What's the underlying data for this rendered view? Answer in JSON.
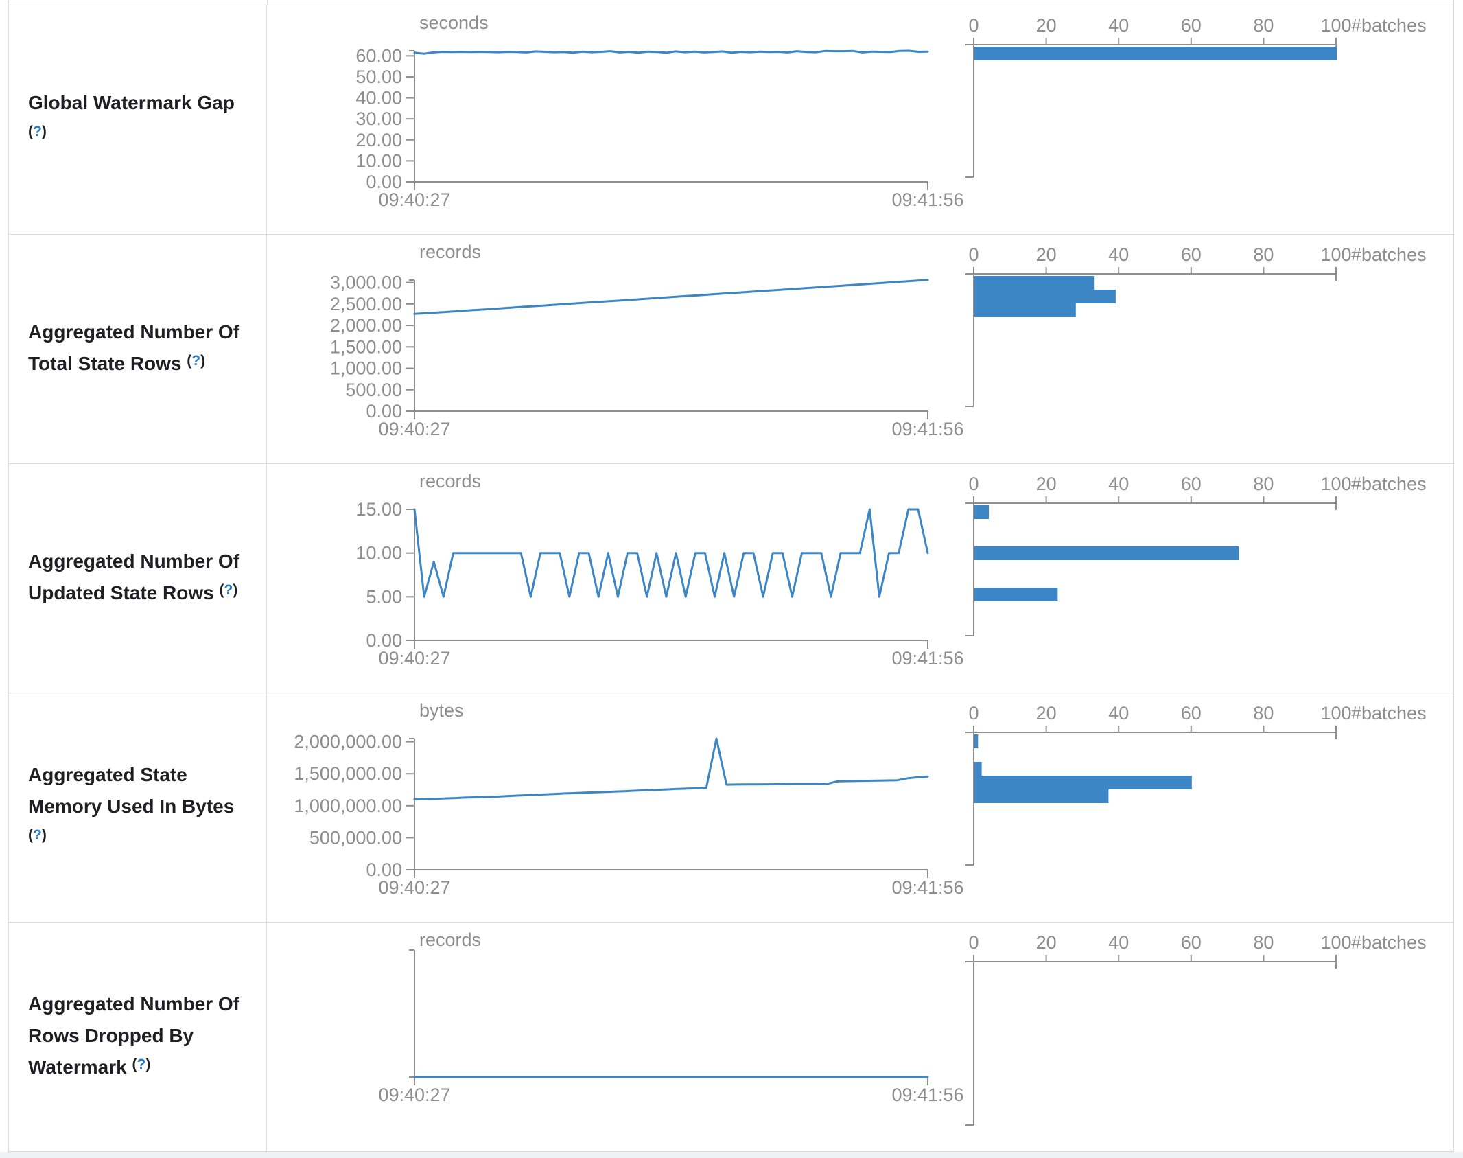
{
  "colors": {
    "accent_blue": "#3d86c6",
    "axis_gray": "#8f8f8f",
    "tick_text_gray": "#8d8d8d",
    "label_text": "#1d1f23",
    "help_blue": "#2779c7",
    "border": "#d9dde1",
    "page_strip": "#eff2f5"
  },
  "histogram_axis_label": "#batches",
  "rows": [
    {
      "id": "global-watermark-gap",
      "label_lines": [
        "Global Watermark Gap",
        "(?)"
      ],
      "timeline": {
        "unit": "seconds",
        "x_start": "09:40:27",
        "x_end": "09:41:56",
        "y_max": 62.4,
        "y_ticks": [
          {
            "v": 0,
            "label": "0.00"
          },
          {
            "v": 10,
            "label": "10.00"
          },
          {
            "v": 20,
            "label": "20.00"
          },
          {
            "v": 30,
            "label": "30.00"
          },
          {
            "v": 40,
            "label": "40.00"
          },
          {
            "v": 50,
            "label": "50.00"
          },
          {
            "v": 60,
            "label": "60.00"
          }
        ],
        "values": [
          61.5,
          61.0,
          61.6,
          61.9,
          61.8,
          61.9,
          61.8,
          61.9,
          61.8,
          61.7,
          61.9,
          61.8,
          61.6,
          62.1,
          61.9,
          61.7,
          61.8,
          61.5,
          62.0,
          61.7,
          61.9,
          62.2,
          61.6,
          61.9,
          61.5,
          62.0,
          61.8,
          61.5,
          62.1,
          61.7,
          62.0,
          61.6,
          61.8,
          62.1,
          61.5,
          61.9,
          61.7,
          62.0,
          61.8,
          61.9,
          61.6,
          62.2,
          61.8,
          61.7,
          62.3,
          62.2,
          62.2,
          62.3,
          61.6,
          62.0,
          61.9,
          61.8,
          62.3,
          62.4,
          61.9,
          62.0
        ]
      },
      "histogram": {
        "x_ticks": [
          {
            "v": 0,
            "label": "0"
          },
          {
            "v": 20,
            "label": "20"
          },
          {
            "v": 40,
            "label": "40"
          },
          {
            "v": 60,
            "label": "60"
          },
          {
            "v": 80,
            "label": "80"
          },
          {
            "v": 100,
            "label": "100"
          }
        ],
        "bins": [
          {
            "slot": 0,
            "count": 100
          }
        ]
      }
    },
    {
      "id": "aggregated-number-of-total-state-rows",
      "label_lines": [
        "Aggregated Number Of",
        "Total State Rows (?)"
      ],
      "timeline": {
        "unit": "records",
        "x_start": "09:40:27",
        "x_end": "09:41:56",
        "y_max": 3058,
        "y_ticks": [
          {
            "v": 0,
            "label": "0.00"
          },
          {
            "v": 500,
            "label": "500.00"
          },
          {
            "v": 1000,
            "label": "1,000.00"
          },
          {
            "v": 1500,
            "label": "1,500.00"
          },
          {
            "v": 2000,
            "label": "2,000.00"
          },
          {
            "v": 2500,
            "label": "2,500.00"
          },
          {
            "v": 3000,
            "label": "3,000.00"
          }
        ],
        "values": [
          2270,
          2283,
          2297,
          2312,
          2328,
          2345,
          2360,
          2374,
          2390,
          2406,
          2422,
          2438,
          2452,
          2466,
          2482,
          2498,
          2514,
          2530,
          2546,
          2560,
          2575,
          2590,
          2606,
          2622,
          2638,
          2654,
          2670,
          2686,
          2700,
          2715,
          2731,
          2747,
          2762,
          2778,
          2794,
          2810,
          2825,
          2841,
          2857,
          2872,
          2888,
          2904,
          2919,
          2935,
          2951,
          2966,
          2982,
          2998,
          3014,
          3030,
          3045,
          3058
        ]
      },
      "histogram": {
        "x_ticks": [
          {
            "v": 0,
            "label": "0"
          },
          {
            "v": 20,
            "label": "20"
          },
          {
            "v": 40,
            "label": "40"
          },
          {
            "v": 60,
            "label": "60"
          },
          {
            "v": 80,
            "label": "80"
          },
          {
            "v": 100,
            "label": "100"
          }
        ],
        "bins": [
          {
            "slot": 0,
            "count": 33
          },
          {
            "slot": 1,
            "count": 39
          },
          {
            "slot": 2,
            "count": 28
          }
        ]
      }
    },
    {
      "id": "aggregated-number-of-updated-state-rows",
      "label_lines": [
        "Aggregated Number Of",
        "Updated State Rows (?)"
      ],
      "timeline": {
        "unit": "records",
        "x_start": "09:40:27",
        "x_end": "09:41:56",
        "y_max": 15,
        "y_ticks": [
          {
            "v": 0,
            "label": "0.00"
          },
          {
            "v": 5,
            "label": "5.00"
          },
          {
            "v": 10,
            "label": "10.00"
          },
          {
            "v": 15,
            "label": "15.00"
          }
        ],
        "values": [
          15,
          5,
          9,
          5,
          10,
          10,
          10,
          10,
          10,
          10,
          10,
          10,
          5,
          10,
          10,
          10,
          5,
          10,
          10,
          5,
          10,
          5,
          10,
          10,
          5,
          10,
          5,
          10,
          5,
          10,
          10,
          5,
          10,
          5,
          10,
          10,
          5,
          10,
          10,
          5,
          10,
          10,
          10,
          5,
          10,
          10,
          10,
          15,
          5,
          10,
          10,
          15,
          15,
          10
        ]
      },
      "histogram": {
        "x_ticks": [
          {
            "v": 0,
            "label": "0"
          },
          {
            "v": 20,
            "label": "20"
          },
          {
            "v": 40,
            "label": "40"
          },
          {
            "v": 60,
            "label": "60"
          },
          {
            "v": 80,
            "label": "80"
          },
          {
            "v": 100,
            "label": "100"
          }
        ],
        "bins": [
          {
            "slot": 0,
            "count": 4
          },
          {
            "slot": 3,
            "count": 73
          },
          {
            "slot": 6,
            "count": 23
          }
        ]
      }
    },
    {
      "id": "aggregated-state-memory-used-in-bytes",
      "label_lines": [
        "Aggregated State",
        "Memory Used In Bytes",
        "(?)"
      ],
      "timeline": {
        "unit": "bytes",
        "x_start": "09:40:27",
        "x_end": "09:41:56",
        "y_max": 2050000,
        "y_ticks": [
          {
            "v": 0,
            "label": "0.00"
          },
          {
            "v": 500000,
            "label": "500,000.00"
          },
          {
            "v": 1000000,
            "label": "1,000,000.00"
          },
          {
            "v": 1500000,
            "label": "1,500,000.00"
          },
          {
            "v": 2000000,
            "label": "2,000,000.00"
          }
        ],
        "values": [
          1100000,
          1105000,
          1108000,
          1115000,
          1120000,
          1128000,
          1132000,
          1138000,
          1142000,
          1150000,
          1158000,
          1165000,
          1170000,
          1178000,
          1185000,
          1192000,
          1198000,
          1205000,
          1210000,
          1215000,
          1222000,
          1228000,
          1235000,
          1242000,
          1248000,
          1255000,
          1262000,
          1268000,
          1274000,
          1280000,
          2050000,
          1330000,
          1332000,
          1333000,
          1334000,
          1335000,
          1336000,
          1337000,
          1338000,
          1339000,
          1340000,
          1342000,
          1380000,
          1385000,
          1388000,
          1390000,
          1392000,
          1395000,
          1398000,
          1430000,
          1445000,
          1458000
        ]
      },
      "histogram": {
        "x_ticks": [
          {
            "v": 0,
            "label": "0"
          },
          {
            "v": 20,
            "label": "20"
          },
          {
            "v": 40,
            "label": "40"
          },
          {
            "v": 60,
            "label": "60"
          },
          {
            "v": 80,
            "label": "80"
          },
          {
            "v": 100,
            "label": "100"
          }
        ],
        "bins": [
          {
            "slot": 0,
            "count": 1
          },
          {
            "slot": 2,
            "count": 2
          },
          {
            "slot": 3,
            "count": 60
          },
          {
            "slot": 4,
            "count": 37
          }
        ]
      }
    },
    {
      "id": "aggregated-number-of-rows-dropped-by-watermark",
      "label_lines": [
        "Aggregated Number Of",
        "Rows Dropped By",
        "Watermark (?)"
      ],
      "timeline": {
        "unit": "records",
        "x_start": "09:40:27",
        "x_end": "09:41:56",
        "y_max": 1,
        "y_ticks": [],
        "values": [
          0,
          0,
          0,
          0,
          0,
          0,
          0,
          0,
          0,
          0,
          0,
          0,
          0,
          0,
          0,
          0,
          0,
          0,
          0,
          0,
          0,
          0,
          0,
          0,
          0,
          0,
          0,
          0,
          0,
          0,
          0,
          0,
          0,
          0,
          0,
          0,
          0,
          0,
          0,
          0,
          0,
          0,
          0,
          0,
          0,
          0,
          0,
          0,
          0,
          0,
          0,
          0
        ]
      },
      "histogram": {
        "x_ticks": [
          {
            "v": 0,
            "label": "0"
          },
          {
            "v": 20,
            "label": "20"
          },
          {
            "v": 40,
            "label": "40"
          },
          {
            "v": 60,
            "label": "60"
          },
          {
            "v": 80,
            "label": "80"
          },
          {
            "v": 100,
            "label": "100"
          }
        ],
        "bins": []
      }
    }
  ]
}
